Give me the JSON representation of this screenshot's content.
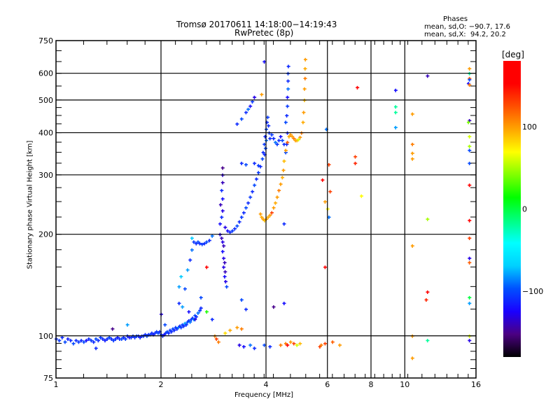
{
  "chart_data": {
    "type": "scatter",
    "title": "Tromsø 20170611 14:18:00−14:19:43",
    "subtitle": "RwPretec (8p)",
    "xlabel": "Frequency [MHz]",
    "ylabel": "Stationary phase Virtual Height [km]",
    "xscale": "log",
    "yscale": "log",
    "xlim": [
      1,
      16
    ],
    "ylim": [
      75,
      750
    ],
    "x_ticks": [
      1,
      2,
      4,
      6,
      8,
      10,
      16
    ],
    "x_tick_labels": [
      "1",
      "2",
      "4",
      "6",
      "8",
      "10",
      "16"
    ],
    "y_ticks": [
      75,
      100,
      200,
      300,
      400,
      500,
      600,
      750
    ],
    "y_tick_labels": [
      "75",
      "100",
      "200",
      "300",
      "400",
      "500",
      "600",
      "750"
    ],
    "grid": true,
    "colorbar": {
      "label": "[deg]",
      "range": [
        -180,
        180
      ],
      "ticks": [
        100,
        0,
        -100
      ],
      "tick_labels": [
        "100",
        "0",
        "−100"
      ],
      "colormap": "rainbow-black",
      "stops": [
        "#000000",
        "#4b0082",
        "#1a00ff",
        "#0050ff",
        "#00d0ff",
        "#00ffff",
        "#00ff80",
        "#00ff00",
        "#80ff00",
        "#ffff00",
        "#ffa500",
        "#ff5000",
        "#ff0000",
        "#ff0000"
      ]
    },
    "legend": {
      "title": "Phases",
      "lines": [
        "mean, sd,O: −90.7, 17.6",
        "mean, sd,X:  94.2, 20.2"
      ],
      "position": "top-right"
    },
    "series_note": "points are [frequency MHz, virtual height km, phase deg]",
    "points": [
      [
        1.0,
        98,
        -110
      ],
      [
        1.02,
        97,
        -105
      ],
      [
        1.04,
        99,
        -110
      ],
      [
        1.06,
        96,
        -100
      ],
      [
        1.08,
        98,
        -115
      ],
      [
        1.1,
        97,
        -110
      ],
      [
        1.12,
        95,
        -100
      ],
      [
        1.14,
        97,
        -110
      ],
      [
        1.16,
        96,
        -105
      ],
      [
        1.18,
        97,
        -110
      ],
      [
        1.2,
        96,
        -100
      ],
      [
        1.22,
        97,
        -120
      ],
      [
        1.24,
        98,
        -110
      ],
      [
        1.26,
        97,
        -105
      ],
      [
        1.28,
        96,
        -110
      ],
      [
        1.3,
        98,
        -100
      ],
      [
        1.32,
        97,
        -110
      ],
      [
        1.34,
        99,
        -105
      ],
      [
        1.36,
        98,
        -110
      ],
      [
        1.38,
        97,
        -115
      ],
      [
        1.4,
        98,
        -110
      ],
      [
        1.42,
        99,
        -100
      ],
      [
        1.44,
        98,
        -110
      ],
      [
        1.46,
        97,
        -105
      ],
      [
        1.48,
        98,
        -110
      ],
      [
        1.5,
        99,
        -115
      ],
      [
        1.52,
        98,
        -110
      ],
      [
        1.54,
        98,
        -100
      ],
      [
        1.56,
        99,
        -110
      ],
      [
        1.58,
        98,
        -105
      ],
      [
        1.6,
        100,
        -110
      ],
      [
        1.62,
        99,
        -120
      ],
      [
        1.64,
        99,
        -110
      ],
      [
        1.66,
        100,
        -105
      ],
      [
        1.68,
        99,
        -110
      ],
      [
        1.7,
        100,
        -100
      ],
      [
        1.72,
        100,
        -110
      ],
      [
        1.74,
        99,
        -115
      ],
      [
        1.76,
        100,
        -110
      ],
      [
        1.78,
        100,
        -105
      ],
      [
        1.8,
        101,
        -110
      ],
      [
        1.82,
        100,
        -100
      ],
      [
        1.84,
        101,
        -110
      ],
      [
        1.86,
        101,
        -105
      ],
      [
        1.88,
        102,
        -110
      ],
      [
        1.9,
        101,
        -115
      ],
      [
        1.92,
        102,
        -110
      ],
      [
        1.94,
        103,
        -105
      ],
      [
        1.96,
        102,
        -100
      ],
      [
        1.98,
        103,
        -110
      ],
      [
        2.0,
        101,
        -105
      ],
      [
        2.02,
        100,
        -110
      ],
      [
        2.04,
        101,
        -120
      ],
      [
        2.06,
        102,
        -110
      ],
      [
        2.08,
        103,
        -100
      ],
      [
        2.1,
        102,
        -110
      ],
      [
        2.12,
        104,
        -105
      ],
      [
        2.14,
        103,
        -110
      ],
      [
        2.16,
        105,
        -100
      ],
      [
        2.18,
        104,
        -110
      ],
      [
        2.2,
        106,
        -105
      ],
      [
        2.22,
        105,
        -110
      ],
      [
        2.24,
        106,
        -90
      ],
      [
        2.26,
        107,
        -110
      ],
      [
        2.28,
        106,
        -105
      ],
      [
        2.3,
        108,
        -100
      ],
      [
        2.32,
        107,
        -110
      ],
      [
        2.34,
        109,
        -80
      ],
      [
        2.36,
        108,
        -105
      ],
      [
        2.38,
        110,
        -100
      ],
      [
        2.4,
        111,
        -110
      ],
      [
        2.42,
        110,
        -90
      ],
      [
        2.44,
        112,
        -105
      ],
      [
        2.46,
        113,
        -110
      ],
      [
        2.48,
        112,
        -80
      ],
      [
        2.5,
        115,
        -100
      ],
      [
        2.52,
        114,
        -110
      ],
      [
        2.55,
        117,
        -90
      ],
      [
        2.58,
        119,
        -105
      ],
      [
        2.6,
        121,
        -110
      ],
      [
        1.3,
        92,
        -110
      ],
      [
        1.45,
        105,
        -150
      ],
      [
        1.6,
        108,
        -80
      ],
      [
        2.0,
        116,
        -130
      ],
      [
        2.05,
        108,
        -100
      ],
      [
        2.3,
        122,
        -80
      ],
      [
        2.4,
        118,
        -120
      ],
      [
        2.5,
        112,
        -130
      ],
      [
        2.6,
        130,
        -100
      ],
      [
        2.7,
        118,
        20
      ],
      [
        2.8,
        112,
        -110
      ],
      [
        2.34,
        138,
        -100
      ],
      [
        2.25,
        125,
        -110
      ],
      [
        2.25,
        140,
        -80
      ],
      [
        2.28,
        150,
        -70
      ],
      [
        2.38,
        157,
        -80
      ],
      [
        2.42,
        168,
        -110
      ],
      [
        2.45,
        180,
        -90
      ],
      [
        2.45,
        195,
        -70
      ],
      [
        2.48,
        190,
        -105
      ],
      [
        2.52,
        188,
        -110
      ],
      [
        2.55,
        190,
        -100
      ],
      [
        2.58,
        188,
        -110
      ],
      [
        2.62,
        187,
        -105
      ],
      [
        2.66,
        188,
        -110
      ],
      [
        2.7,
        190,
        -100
      ],
      [
        2.75,
        192,
        -110
      ],
      [
        2.8,
        198,
        -90
      ],
      [
        2.95,
        200,
        -130
      ],
      [
        2.98,
        195,
        -140
      ],
      [
        3.0,
        190,
        -130
      ],
      [
        3.02,
        185,
        -140
      ],
      [
        3.0,
        178,
        -120
      ],
      [
        3.02,
        170,
        -130
      ],
      [
        3.04,
        165,
        -140
      ],
      [
        3.02,
        160,
        -130
      ],
      [
        3.05,
        155,
        -140
      ],
      [
        3.04,
        150,
        -120
      ],
      [
        3.06,
        145,
        -130
      ],
      [
        3.08,
        140,
        -100
      ],
      [
        2.95,
        215,
        -120
      ],
      [
        2.98,
        225,
        -110
      ],
      [
        3.0,
        235,
        -130
      ],
      [
        2.96,
        245,
        -140
      ],
      [
        3.0,
        255,
        -120
      ],
      [
        2.98,
        270,
        -110
      ],
      [
        3.0,
        285,
        -140
      ],
      [
        3.0,
        300,
        -135
      ],
      [
        3.0,
        315,
        -150
      ],
      [
        3.05,
        210,
        -130
      ],
      [
        3.1,
        205,
        -120
      ],
      [
        3.15,
        203,
        -110
      ],
      [
        3.2,
        205,
        -105
      ],
      [
        3.25,
        208,
        -110
      ],
      [
        3.3,
        212,
        -100
      ],
      [
        3.35,
        218,
        -110
      ],
      [
        3.4,
        225,
        -105
      ],
      [
        3.45,
        232,
        -110
      ],
      [
        3.5,
        240,
        -100
      ],
      [
        3.55,
        248,
        -110
      ],
      [
        3.6,
        258,
        -105
      ],
      [
        3.65,
        268,
        -110
      ],
      [
        3.7,
        280,
        -100
      ],
      [
        3.75,
        292,
        -110
      ],
      [
        3.8,
        305,
        -105
      ],
      [
        3.85,
        318,
        -110
      ],
      [
        3.9,
        335,
        -100
      ],
      [
        3.92,
        350,
        -110
      ],
      [
        3.95,
        370,
        -105
      ],
      [
        3.97,
        390,
        -110
      ],
      [
        4.0,
        410,
        -100
      ],
      [
        4.02,
        430,
        -110
      ],
      [
        4.04,
        445,
        -105
      ],
      [
        4.06,
        420,
        -110
      ],
      [
        4.08,
        400,
        -105
      ],
      [
        4.1,
        385,
        -110
      ],
      [
        4.0,
        380,
        -90
      ],
      [
        3.98,
        360,
        -100
      ],
      [
        3.96,
        345,
        -110
      ],
      [
        4.15,
        395,
        -105
      ],
      [
        4.2,
        385,
        -110
      ],
      [
        4.25,
        375,
        -90
      ],
      [
        4.3,
        370,
        -105
      ],
      [
        4.35,
        380,
        -110
      ],
      [
        4.4,
        390,
        -120
      ],
      [
        4.45,
        380,
        -100
      ],
      [
        4.5,
        370,
        -110
      ],
      [
        3.4,
        325,
        -110
      ],
      [
        3.5,
        322,
        -100
      ],
      [
        3.7,
        325,
        -110
      ],
      [
        3.8,
        320,
        -105
      ],
      [
        3.3,
        425,
        -110
      ],
      [
        3.4,
        440,
        -100
      ],
      [
        3.5,
        460,
        -110
      ],
      [
        3.55,
        470,
        -90
      ],
      [
        3.6,
        480,
        -120
      ],
      [
        3.65,
        495,
        -105
      ],
      [
        3.7,
        510,
        -130
      ],
      [
        4.55,
        430,
        -100
      ],
      [
        4.58,
        450,
        -110
      ],
      [
        4.6,
        480,
        -105
      ],
      [
        4.6,
        510,
        -120
      ],
      [
        4.62,
        540,
        -90
      ],
      [
        4.62,
        570,
        -110
      ],
      [
        4.62,
        600,
        -105
      ],
      [
        4.63,
        630,
        -110
      ],
      [
        4.6,
        400,
        -115
      ],
      [
        4.58,
        370,
        -110
      ],
      [
        4.55,
        350,
        -100
      ],
      [
        3.95,
        650,
        -120
      ],
      [
        3.88,
        520,
        100
      ],
      [
        3.85,
        230,
        100
      ],
      [
        3.88,
        225,
        95
      ],
      [
        3.92,
        222,
        100
      ],
      [
        3.96,
        220,
        90
      ],
      [
        4.0,
        222,
        100
      ],
      [
        4.05,
        225,
        95
      ],
      [
        4.1,
        228,
        100
      ],
      [
        4.15,
        232,
        130
      ],
      [
        4.2,
        240,
        100
      ],
      [
        4.25,
        248,
        95
      ],
      [
        4.3,
        258,
        100
      ],
      [
        4.35,
        270,
        110
      ],
      [
        4.4,
        282,
        100
      ],
      [
        4.45,
        295,
        95
      ],
      [
        4.48,
        310,
        100
      ],
      [
        4.5,
        330,
        90
      ],
      [
        4.55,
        355,
        100
      ],
      [
        4.6,
        375,
        120
      ],
      [
        4.65,
        390,
        95
      ],
      [
        4.7,
        395,
        100
      ],
      [
        4.75,
        390,
        100
      ],
      [
        4.8,
        385,
        110
      ],
      [
        4.85,
        380,
        100
      ],
      [
        4.9,
        380,
        95
      ],
      [
        4.95,
        382,
        60
      ],
      [
        5.0,
        388,
        100
      ],
      [
        5.05,
        400,
        110
      ],
      [
        5.1,
        430,
        95
      ],
      [
        5.12,
        460,
        100
      ],
      [
        5.15,
        500,
        90
      ],
      [
        5.15,
        540,
        100
      ],
      [
        5.17,
        580,
        110
      ],
      [
        5.17,
        620,
        95
      ],
      [
        5.18,
        660,
        100
      ],
      [
        2.85,
        100,
        105
      ],
      [
        2.88,
        98,
        130
      ],
      [
        2.92,
        96,
        110
      ],
      [
        3.05,
        102,
        80
      ],
      [
        3.15,
        104,
        95
      ],
      [
        3.3,
        106,
        100
      ],
      [
        3.4,
        105,
        110
      ],
      [
        3.35,
        94,
        -130
      ],
      [
        3.45,
        93,
        -120
      ],
      [
        3.6,
        94,
        -90
      ],
      [
        3.7,
        92,
        -110
      ],
      [
        3.95,
        94,
        -100
      ],
      [
        4.1,
        93,
        -110
      ],
      [
        4.4,
        94,
        110
      ],
      [
        4.55,
        95,
        110
      ],
      [
        4.6,
        94,
        160
      ],
      [
        4.7,
        96,
        100
      ],
      [
        4.8,
        95,
        130
      ],
      [
        4.9,
        94,
        60
      ],
      [
        5.0,
        95,
        90
      ],
      [
        5.7,
        93,
        130
      ],
      [
        5.75,
        94,
        110
      ],
      [
        5.9,
        95,
        130
      ],
      [
        6.2,
        96,
        120
      ],
      [
        6.5,
        94,
        100
      ],
      [
        4.5,
        215,
        -110
      ],
      [
        4.5,
        125,
        -120
      ],
      [
        4.2,
        122,
        -150
      ],
      [
        3.4,
        128,
        -100
      ],
      [
        3.5,
        120,
        -110
      ],
      [
        2.7,
        160,
        160
      ],
      [
        5.95,
        410,
        -90
      ],
      [
        5.8,
        290,
        160
      ],
      [
        6.05,
        322,
        130
      ],
      [
        6.1,
        268,
        130
      ],
      [
        5.9,
        250,
        100
      ],
      [
        6.0,
        238,
        70
      ],
      [
        6.05,
        225,
        -90
      ],
      [
        5.9,
        160,
        160
      ],
      [
        7.3,
        545,
        160
      ],
      [
        7.2,
        340,
        130
      ],
      [
        7.2,
        325,
        140
      ],
      [
        7.5,
        260,
        70
      ],
      [
        9.4,
        535,
        -120
      ],
      [
        9.4,
        478,
        -20
      ],
      [
        9.4,
        460,
        -20
      ],
      [
        9.4,
        415,
        -80
      ],
      [
        10.5,
        455,
        100
      ],
      [
        10.5,
        370,
        110
      ],
      [
        10.5,
        348,
        100
      ],
      [
        10.5,
        335,
        100
      ],
      [
        10.5,
        185,
        100
      ],
      [
        10.5,
        100,
        100
      ],
      [
        10.5,
        86,
        100
      ],
      [
        11.6,
        590,
        -140
      ],
      [
        11.6,
        135,
        160
      ],
      [
        11.5,
        128,
        140
      ],
      [
        11.6,
        222,
        50
      ],
      [
        11.6,
        97,
        -20
      ],
      [
        15.3,
        620,
        100
      ],
      [
        15.3,
        600,
        -20
      ],
      [
        15.3,
        580,
        120
      ],
      [
        15.3,
        575,
        -100
      ],
      [
        15.2,
        560,
        -120
      ],
      [
        15.3,
        555,
        110
      ],
      [
        15.3,
        435,
        -140
      ],
      [
        15.2,
        430,
        40
      ],
      [
        15.3,
        390,
        60
      ],
      [
        15.3,
        365,
        50
      ],
      [
        15.3,
        355,
        -100
      ],
      [
        15.3,
        325,
        -100
      ],
      [
        15.3,
        280,
        170
      ],
      [
        15.3,
        220,
        160
      ],
      [
        15.3,
        195,
        130
      ],
      [
        15.3,
        170,
        -130
      ],
      [
        15.3,
        165,
        120
      ],
      [
        15.3,
        130,
        0
      ],
      [
        15.3,
        125,
        -80
      ],
      [
        15.3,
        100,
        60
      ],
      [
        15.3,
        97,
        -130
      ]
    ]
  }
}
